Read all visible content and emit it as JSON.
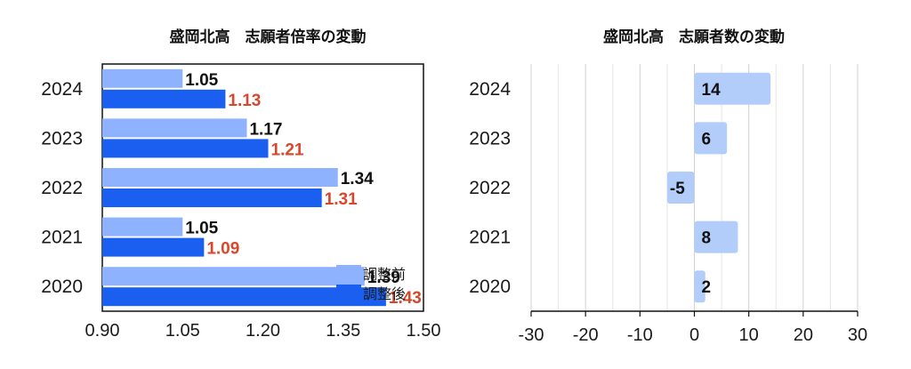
{
  "chart_data": [
    {
      "type": "bar",
      "orientation": "horizontal",
      "title": "盛岡北高　志願者倍率の変動",
      "categories": [
        "2024",
        "2023",
        "2022",
        "2021",
        "2020"
      ],
      "xlim": [
        0.9,
        1.5
      ],
      "xticks": [
        "0.90",
        "1.05",
        "1.20",
        "1.35",
        "1.50"
      ],
      "grid": false,
      "legend_position": "inside-bottom-right",
      "series": [
        {
          "name": "調整前",
          "color": "#8fb2ff",
          "label_color": "#111111",
          "values": [
            1.05,
            1.17,
            1.34,
            1.05,
            1.39
          ],
          "labels": [
            "1.05",
            "1.17",
            "1.34",
            "1.05",
            "1.39"
          ]
        },
        {
          "name": "調整後",
          "color": "#1a5ff0",
          "label_color": "#d9472b",
          "values": [
            1.13,
            1.21,
            1.31,
            1.09,
            1.43
          ],
          "labels": [
            "1.13",
            "1.21",
            "1.31",
            "1.09",
            "1.43"
          ]
        }
      ]
    },
    {
      "type": "bar",
      "orientation": "horizontal",
      "title": "盛岡北高　志願者数の変動",
      "categories": [
        "2024",
        "2023",
        "2022",
        "2021",
        "2020"
      ],
      "xlim": [
        -30,
        30
      ],
      "xticks": [
        "-30",
        "-20",
        "-10",
        "0",
        "10",
        "20",
        "30"
      ],
      "grid": true,
      "series": [
        {
          "color": "#b3cdfb",
          "label_color": "#111111",
          "values": [
            14,
            6,
            -5,
            8,
            2
          ],
          "labels": [
            "14",
            "6",
            "-5",
            "8",
            "2"
          ]
        }
      ]
    }
  ]
}
